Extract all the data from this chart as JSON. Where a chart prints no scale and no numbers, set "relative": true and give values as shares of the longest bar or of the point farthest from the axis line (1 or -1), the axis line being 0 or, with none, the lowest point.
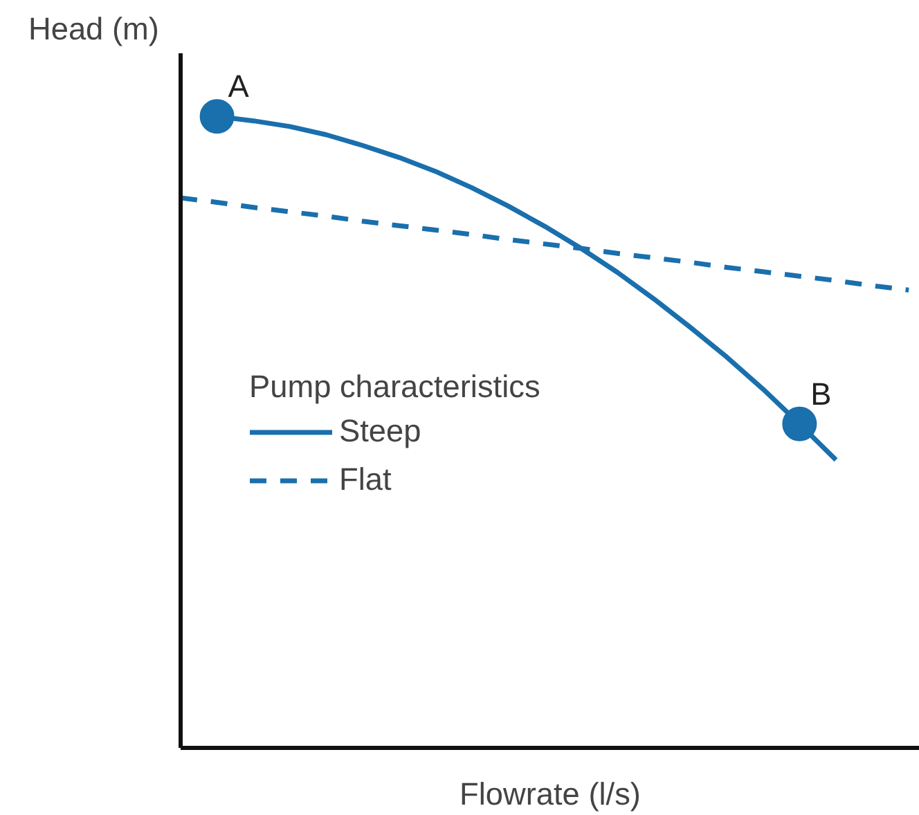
{
  "chart_data": {
    "type": "line",
    "relative": true,
    "xlabel": "Flowrate (l/s)",
    "ylabel": "Head (m)",
    "legend_title": "Pump characteristics",
    "legend": "left",
    "marker": "none",
    "annotations": [
      {
        "text": "A",
        "y": 1.0
      },
      {
        "text": "B",
        "y": 0.513
      }
    ],
    "categories": [
      null,
      null,
      null,
      null,
      null,
      null,
      null,
      null,
      null,
      null,
      null,
      null,
      null,
      null,
      null,
      null,
      null,
      null,
      null,
      null,
      null
    ],
    "series": [
      {
        "name": "Steep",
        "color": "#1a6fad",
        "line_style": "solid",
        "values": [
          null,
          1.0,
          0.993,
          0.984,
          0.971,
          0.954,
          0.935,
          0.913,
          0.887,
          0.858,
          0.826,
          0.791,
          0.753,
          0.711,
          0.666,
          0.619,
          0.568,
          0.513,
          0.456,
          null,
          null
        ]
      },
      {
        "name": "Flat",
        "color": "#1a6fad",
        "line_style": "dashed",
        "values": [
          0.871,
          0.864,
          0.856,
          0.849,
          0.842,
          0.834,
          0.827,
          0.82,
          0.813,
          0.805,
          0.798,
          0.791,
          0.783,
          0.776,
          0.769,
          0.761,
          0.754,
          0.747,
          0.74,
          0.732,
          0.725
        ]
      }
    ]
  }
}
